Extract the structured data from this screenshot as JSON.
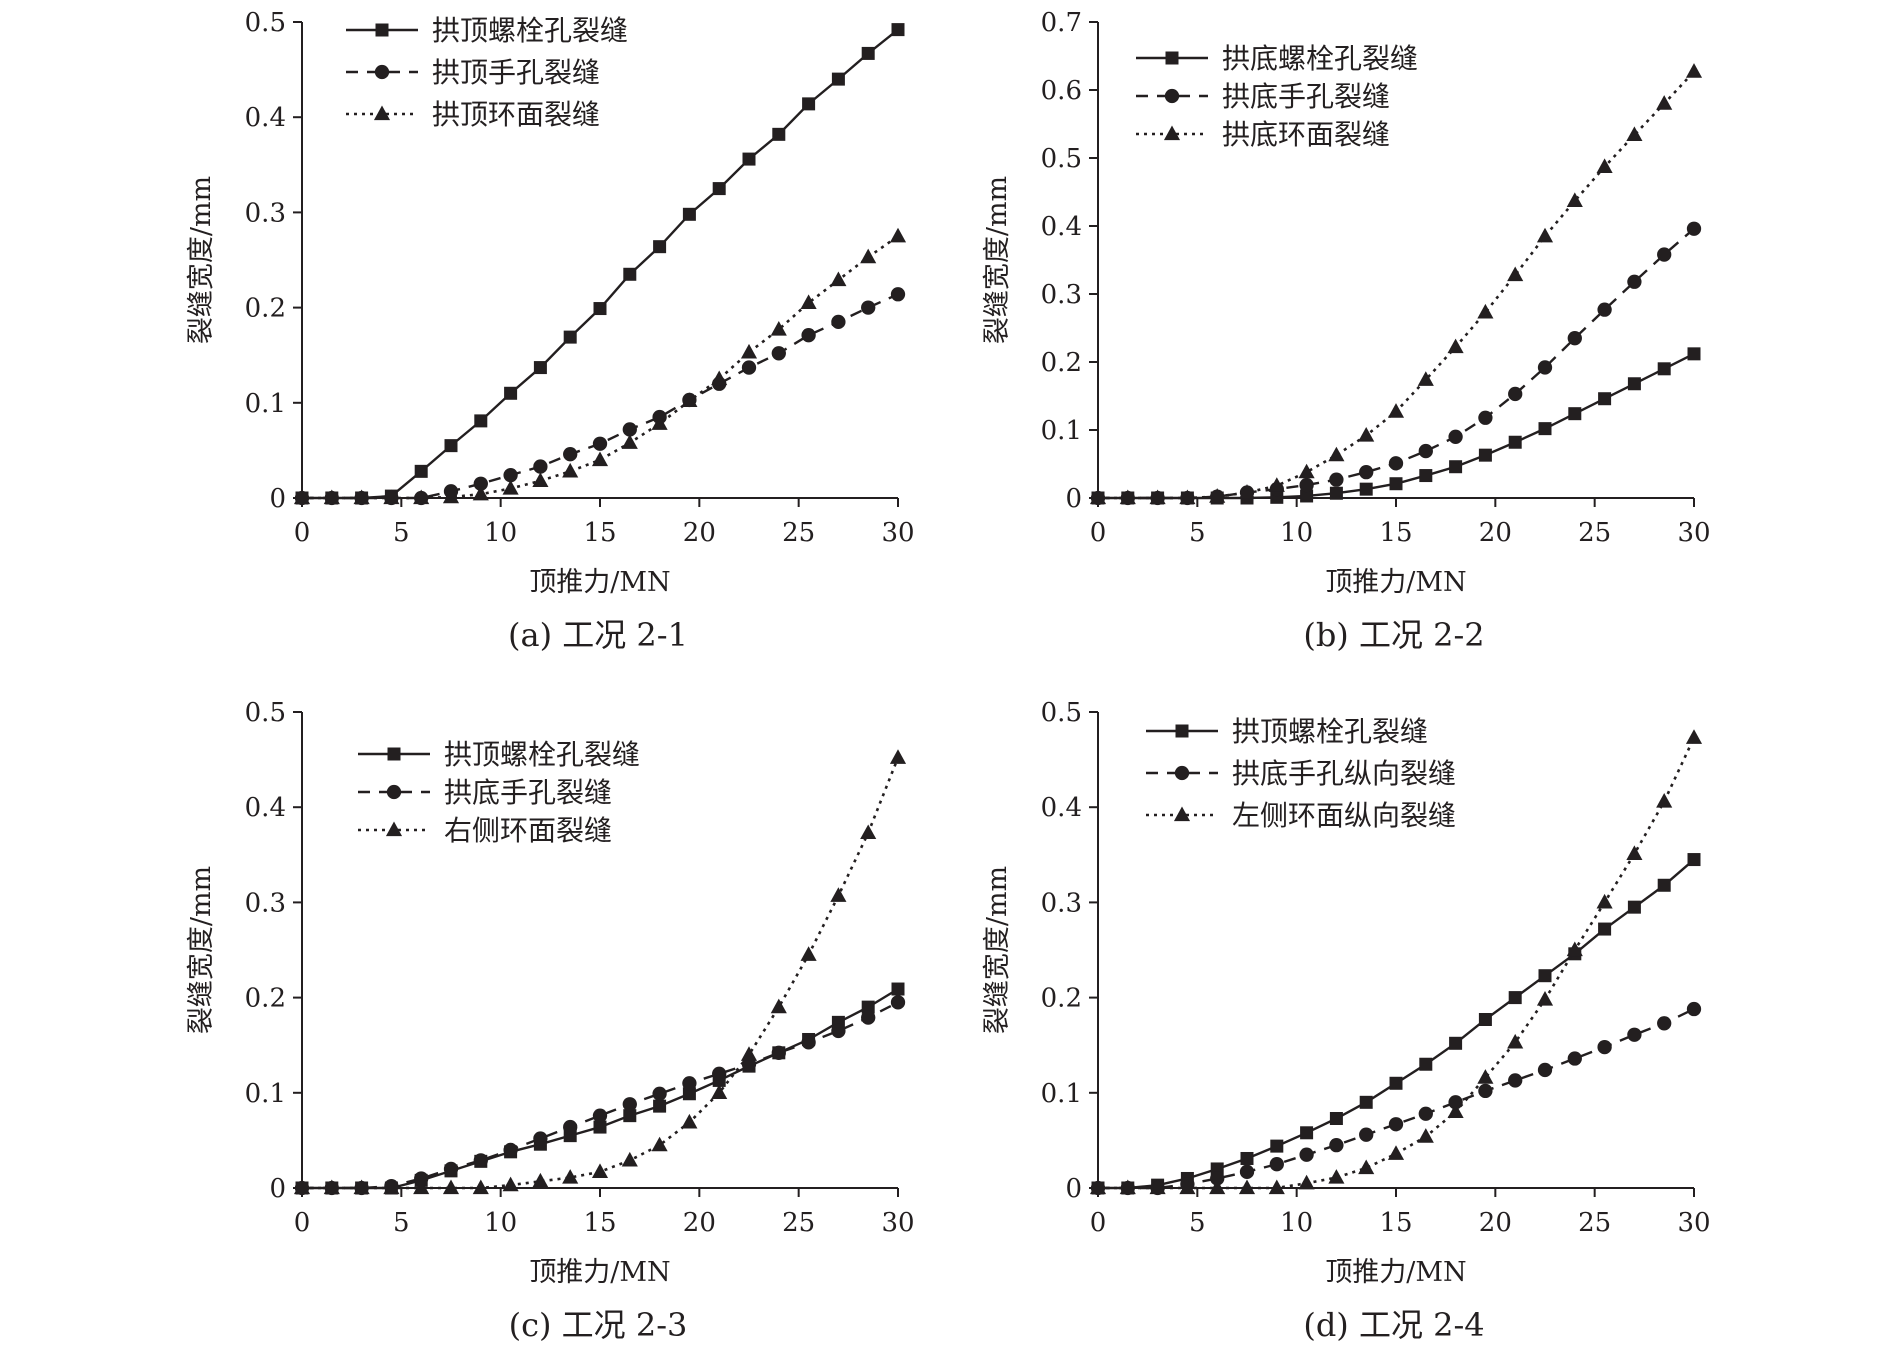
{
  "figure": {
    "panels": [
      {
        "caption": "(a) 工况 2-1"
      },
      {
        "caption": "(b) 工况 2-2"
      },
      {
        "caption": "(c) 工况 2-3"
      },
      {
        "caption": "(d) 工况 2-4"
      }
    ]
  },
  "chart_data": [
    {
      "type": "line",
      "title": "",
      "xlabel": "顶推力/MN",
      "ylabel": "裂缝宽度/mm",
      "xlim": [
        0,
        30
      ],
      "ylim": [
        0,
        0.5
      ],
      "xticks": [
        "0",
        "5",
        "10",
        "15",
        "20",
        "25",
        "30"
      ],
      "yticks": [
        "0",
        "0.1",
        "0.2",
        "0.3",
        "0.4",
        "0.5"
      ],
      "legend_position": "top-left",
      "grid": false,
      "x": [
        0,
        1.5,
        3,
        4.5,
        6,
        7.5,
        9,
        10.5,
        12,
        13.5,
        15,
        16.5,
        18,
        19.5,
        21,
        22.5,
        24,
        25.5,
        27,
        28.5,
        30
      ],
      "series": [
        {
          "name": "拱顶螺栓孔裂缝",
          "style": "solid",
          "marker": "square",
          "values": [
            0,
            0,
            0,
            0.002,
            0.028,
            0.055,
            0.081,
            0.11,
            0.137,
            0.169,
            0.199,
            0.235,
            0.264,
            0.298,
            0.325,
            0.356,
            0.382,
            0.414,
            0.44,
            0.467,
            0.492
          ]
        },
        {
          "name": "拱顶手孔裂缝",
          "style": "dashed",
          "marker": "circle",
          "values": [
            0,
            0,
            0,
            0,
            0,
            0.007,
            0.015,
            0.024,
            0.033,
            0.046,
            0.057,
            0.072,
            0.085,
            0.103,
            0.12,
            0.137,
            0.152,
            0.171,
            0.185,
            0.2,
            0.214
          ]
        },
        {
          "name": "拱顶环面裂缝",
          "style": "dotted",
          "marker": "triangle",
          "values": [
            0,
            0,
            0,
            0,
            0,
            0.001,
            0.004,
            0.01,
            0.018,
            0.028,
            0.04,
            0.058,
            0.078,
            0.102,
            0.125,
            0.153,
            0.177,
            0.205,
            0.229,
            0.253,
            0.275
          ]
        }
      ]
    },
    {
      "type": "line",
      "title": "",
      "xlabel": "顶推力/MN",
      "ylabel": "裂缝宽度/mm",
      "xlim": [
        0,
        30
      ],
      "ylim": [
        0,
        0.7
      ],
      "xticks": [
        "0",
        "5",
        "10",
        "15",
        "20",
        "25",
        "30"
      ],
      "yticks": [
        "0",
        "0.1",
        "0.2",
        "0.3",
        "0.4",
        "0.5",
        "0.6",
        "0.7"
      ],
      "legend_position": "top-left",
      "grid": false,
      "x": [
        0,
        1.5,
        3,
        4.5,
        6,
        7.5,
        9,
        10.5,
        12,
        13.5,
        15,
        16.5,
        18,
        19.5,
        21,
        22.5,
        24,
        25.5,
        27,
        28.5,
        30
      ],
      "series": [
        {
          "name": "拱底螺栓孔裂缝",
          "style": "solid",
          "marker": "square",
          "values": [
            0,
            0,
            0,
            0,
            0,
            0,
            0.001,
            0.003,
            0.007,
            0.013,
            0.021,
            0.033,
            0.046,
            0.063,
            0.082,
            0.102,
            0.124,
            0.146,
            0.168,
            0.19,
            0.212
          ]
        },
        {
          "name": "拱底手孔裂缝",
          "style": "dashed",
          "marker": "circle",
          "values": [
            0,
            0,
            0,
            0,
            0.002,
            0.008,
            0.013,
            0.019,
            0.027,
            0.038,
            0.051,
            0.069,
            0.09,
            0.118,
            0.153,
            0.192,
            0.235,
            0.277,
            0.318,
            0.358,
            0.396
          ]
        },
        {
          "name": "拱底环面裂缝",
          "style": "dotted",
          "marker": "triangle",
          "values": [
            0,
            0,
            0,
            0,
            0.002,
            0.008,
            0.018,
            0.038,
            0.063,
            0.092,
            0.127,
            0.174,
            0.222,
            0.273,
            0.328,
            0.385,
            0.437,
            0.487,
            0.534,
            0.58,
            0.627
          ]
        }
      ]
    },
    {
      "type": "line",
      "title": "",
      "xlabel": "顶推力/MN",
      "ylabel": "裂缝宽度/mm",
      "xlim": [
        0,
        30
      ],
      "ylim": [
        0,
        0.5
      ],
      "xticks": [
        "0",
        "5",
        "10",
        "15",
        "20",
        "25",
        "30"
      ],
      "yticks": [
        "0",
        "0.1",
        "0.2",
        "0.3",
        "0.4",
        "0.5"
      ],
      "legend_position": "top-left",
      "grid": false,
      "x": [
        0,
        1.5,
        3,
        4.5,
        6,
        7.5,
        9,
        10.5,
        12,
        13.5,
        15,
        16.5,
        18,
        19.5,
        21,
        22.5,
        24,
        25.5,
        27,
        28.5,
        30
      ],
      "series": [
        {
          "name": "拱顶螺栓孔裂缝",
          "style": "solid",
          "marker": "square",
          "values": [
            0,
            0,
            0,
            0,
            0.008,
            0.018,
            0.028,
            0.038,
            0.046,
            0.055,
            0.064,
            0.076,
            0.086,
            0.099,
            0.113,
            0.128,
            0.142,
            0.156,
            0.174,
            0.19,
            0.209
          ]
        },
        {
          "name": "拱底手孔裂缝",
          "style": "dashed",
          "marker": "circle",
          "values": [
            0,
            0,
            0,
            0.002,
            0.01,
            0.02,
            0.029,
            0.04,
            0.052,
            0.064,
            0.076,
            0.088,
            0.099,
            0.11,
            0.12,
            0.13,
            0.142,
            0.153,
            0.165,
            0.179,
            0.195
          ]
        },
        {
          "name": "右侧环面裂缝",
          "style": "dotted",
          "marker": "triangle",
          "values": [
            0,
            0,
            0,
            0,
            0,
            0,
            0,
            0.003,
            0.007,
            0.011,
            0.017,
            0.029,
            0.045,
            0.069,
            0.1,
            0.14,
            0.19,
            0.245,
            0.307,
            0.373,
            0.452
          ]
        }
      ]
    },
    {
      "type": "line",
      "title": "",
      "xlabel": "顶推力/MN",
      "ylabel": "裂缝宽度/mm",
      "xlim": [
        0,
        30
      ],
      "ylim": [
        0,
        0.5
      ],
      "xticks": [
        "0",
        "5",
        "10",
        "15",
        "20",
        "25",
        "30"
      ],
      "yticks": [
        "0",
        "0.1",
        "0.2",
        "0.3",
        "0.4",
        "0.5"
      ],
      "legend_position": "top-left",
      "grid": false,
      "x": [
        0,
        1.5,
        3,
        4.5,
        6,
        7.5,
        9,
        10.5,
        12,
        13.5,
        15,
        16.5,
        18,
        19.5,
        21,
        22.5,
        24,
        25.5,
        27,
        28.5,
        30
      ],
      "series": [
        {
          "name": "拱顶螺栓孔裂缝",
          "style": "solid",
          "marker": "square",
          "values": [
            0,
            0,
            0.003,
            0.01,
            0.02,
            0.031,
            0.044,
            0.058,
            0.073,
            0.09,
            0.11,
            0.13,
            0.152,
            0.177,
            0.2,
            0.223,
            0.246,
            0.272,
            0.295,
            0.318,
            0.345
          ]
        },
        {
          "name": "拱底手孔纵向裂缝",
          "style": "dashed",
          "marker": "circle",
          "values": [
            0,
            0,
            0,
            0.004,
            0.01,
            0.017,
            0.025,
            0.035,
            0.045,
            0.056,
            0.067,
            0.078,
            0.09,
            0.102,
            0.113,
            0.124,
            0.136,
            0.148,
            0.161,
            0.173,
            0.188
          ]
        },
        {
          "name": "左侧环面纵向裂缝",
          "style": "dotted",
          "marker": "triangle",
          "values": [
            0,
            0,
            0,
            0,
            0,
            0,
            0,
            0.005,
            0.011,
            0.021,
            0.036,
            0.054,
            0.08,
            0.116,
            0.153,
            0.198,
            0.25,
            0.3,
            0.351,
            0.406,
            0.473
          ]
        }
      ]
    }
  ]
}
